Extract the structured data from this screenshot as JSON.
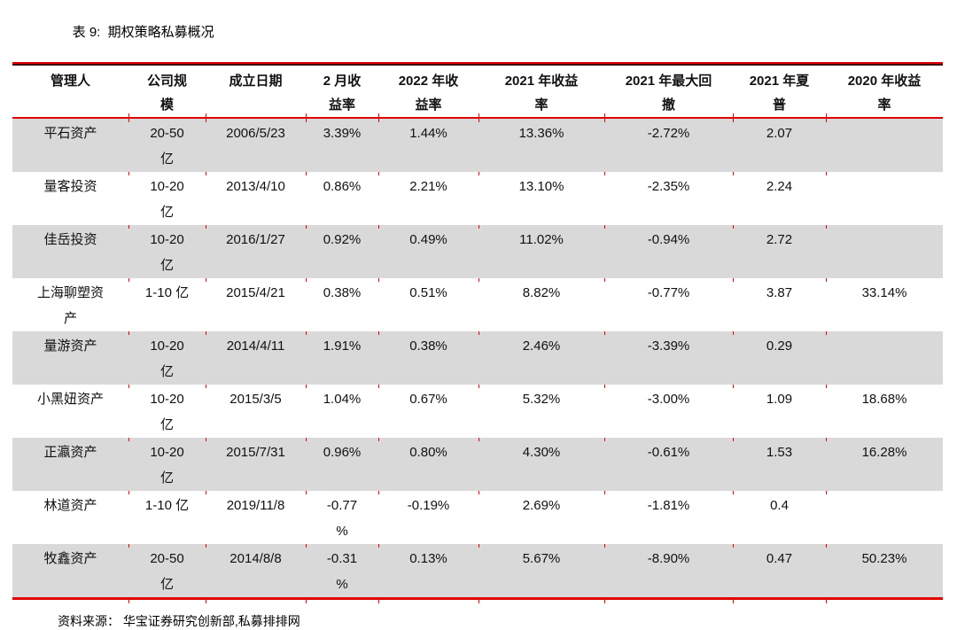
{
  "title": "表 9:  期权策略私募概况",
  "source": "资料来源： 华宝证券研究创新部,私募排排网",
  "colors": {
    "accent_red": "#E00000",
    "dark_red": "#3D0000",
    "row_stripe_gray": "#D9D9D9"
  },
  "table": {
    "headers": [
      "管理人",
      "公司规\n模",
      "成立日期",
      "2 月收\n益率",
      "2022 年收\n益率",
      "2021 年收益\n率",
      "2021 年最大回\n撤",
      "2021 年夏\n普",
      "2020 年收益\n率"
    ],
    "rows": [
      [
        "平石资产",
        "20-50\n亿",
        "2006/5/23",
        "3.39%",
        "1.44%",
        "13.36%",
        "-2.72%",
        "2.07",
        ""
      ],
      [
        "量客投资",
        "10-20\n亿",
        "2013/4/10",
        "0.86%",
        "2.21%",
        "13.10%",
        "-2.35%",
        "2.24",
        ""
      ],
      [
        "佳岳投资",
        "10-20\n亿",
        "2016/1/27",
        "0.92%",
        "0.49%",
        "11.02%",
        "-0.94%",
        "2.72",
        ""
      ],
      [
        "上海聊塑资\n产",
        "1-10 亿",
        "2015/4/21",
        "0.38%",
        "0.51%",
        "8.82%",
        "-0.77%",
        "3.87",
        "33.14%"
      ],
      [
        "量游资产",
        "10-20\n亿",
        "2014/4/11",
        "1.91%",
        "0.38%",
        "2.46%",
        "-3.39%",
        "0.29",
        ""
      ],
      [
        "小黑妞资产",
        "10-20\n亿",
        "2015/3/5",
        "1.04%",
        "0.67%",
        "5.32%",
        "-3.00%",
        "1.09",
        "18.68%"
      ],
      [
        "正瀛资产",
        "10-20\n亿",
        "2015/7/31",
        "0.96%",
        "0.80%",
        "4.30%",
        "-0.61%",
        "1.53",
        "16.28%"
      ],
      [
        "林道资产",
        "1-10 亿",
        "2019/11/8",
        "-0.77\n%",
        "-0.19%",
        "2.69%",
        "-1.81%",
        "0.4",
        ""
      ],
      [
        "牧鑫资产",
        "20-50\n亿",
        "2014/8/8",
        "-0.31\n%",
        "0.13%",
        "5.67%",
        "-8.90%",
        "0.47",
        "50.23%"
      ]
    ]
  }
}
